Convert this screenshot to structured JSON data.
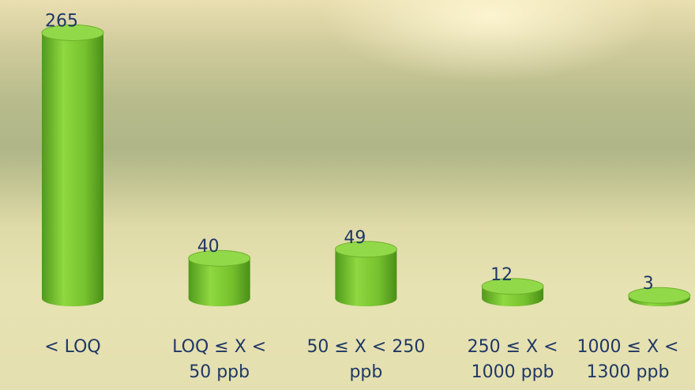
{
  "chart_data": {
    "type": "cylinder-bar",
    "categories": [
      "< LOQ",
      "LOQ ≤ X <\n50 ppb",
      "50 ≤ X < 250\nppb",
      "250 ≤ X <\n1000 ppb",
      "1000 ≤ X <\n1300 ppb"
    ],
    "values": [
      265,
      40,
      49,
      12,
      3
    ],
    "color": "#76c12e"
  }
}
